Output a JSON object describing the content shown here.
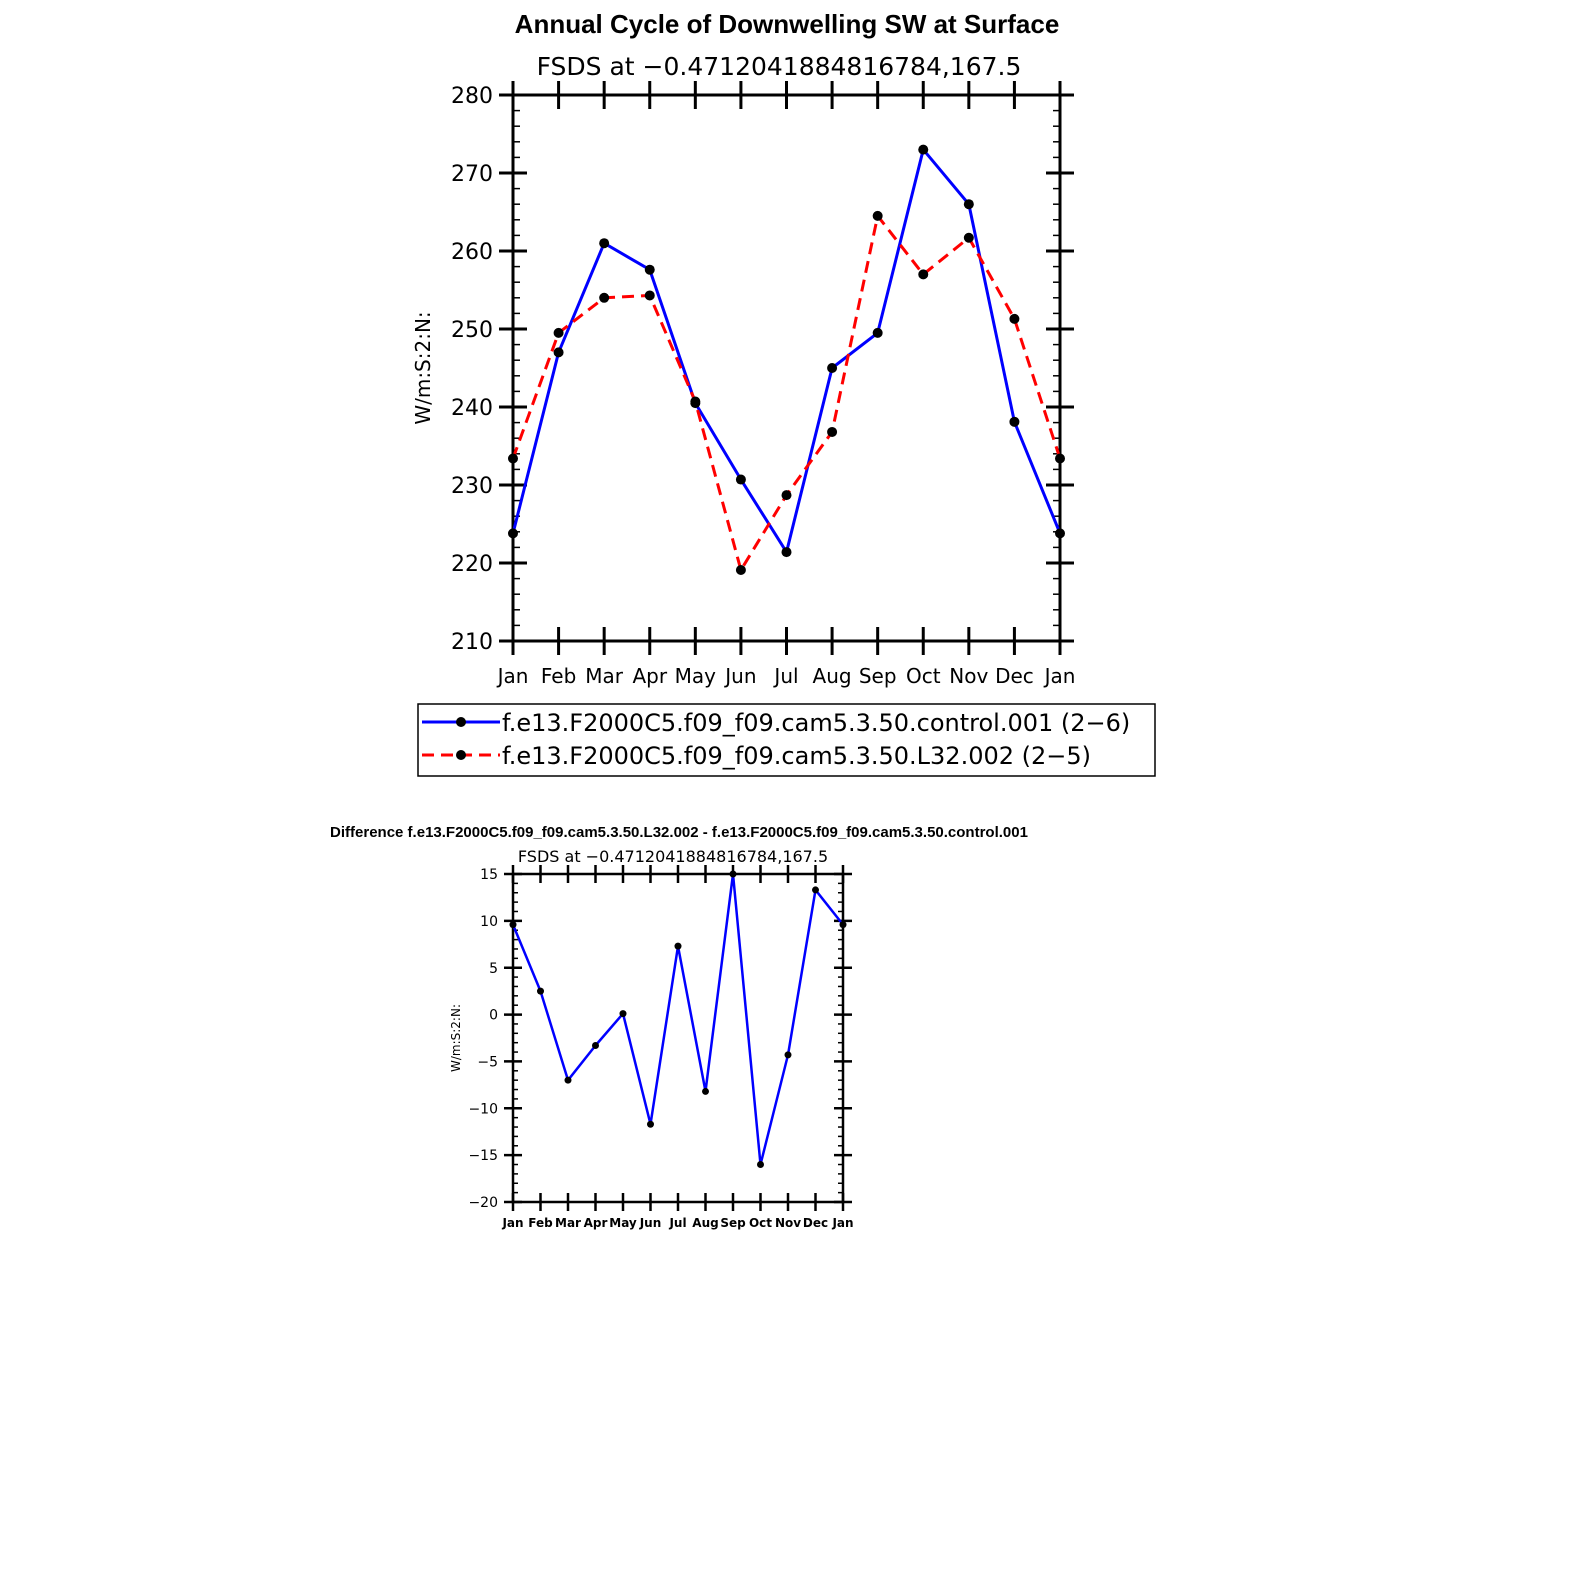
{
  "chart_data": [
    {
      "type": "line",
      "title": "Annual Cycle of Downwelling SW at Surface",
      "subtitle": "FSDS at −0.4712041884816784,167.5",
      "ylabel": "W/m:S:2:N:",
      "xlabel": "",
      "ylim": [
        210,
        280
      ],
      "yticks": [
        210,
        220,
        230,
        240,
        250,
        260,
        270,
        280
      ],
      "categories": [
        "Jan",
        "Feb",
        "Mar",
        "Apr",
        "May",
        "Jun",
        "Jul",
        "Aug",
        "Sep",
        "Oct",
        "Nov",
        "Dec",
        "Jan"
      ],
      "grid": false,
      "legend_position": "bottom",
      "series": [
        {
          "name": "f.e13.F2000C5.f09_f09.cam5.3.50.control.001 (2−6)",
          "color": "#0000ff",
          "dash": "solid",
          "values": [
            223.8,
            247.0,
            261.0,
            257.6,
            240.5,
            230.7,
            221.4,
            245.0,
            249.5,
            273.0,
            266.0,
            238.1,
            223.8
          ]
        },
        {
          "name": "f.e13.F2000C5.f09_f09.cam5.3.50.L32.002 (2−5)",
          "color": "#ff0000",
          "dash": "dashed",
          "values": [
            233.4,
            249.5,
            254.0,
            254.3,
            240.7,
            219.1,
            228.7,
            236.8,
            264.5,
            257.0,
            261.7,
            251.3,
            233.4
          ]
        }
      ]
    },
    {
      "type": "line",
      "title": "Difference f.e13.F2000C5.f09_f09.cam5.3.50.L32.002 - f.e13.F2000C5.f09_f09.cam5.3.50.control.001",
      "subtitle": "FSDS at −0.4712041884816784,167.5",
      "ylabel": "W/m:S:2:N:",
      "xlabel": "",
      "ylim": [
        -20,
        15
      ],
      "yticks": [
        -20,
        -15,
        -10,
        -5,
        0,
        5,
        10,
        15
      ],
      "ytick_labels": [
        "−20",
        "−15",
        "−10",
        "−5",
        "0",
        "5",
        "10",
        "15"
      ],
      "categories": [
        "Jan",
        "Feb",
        "Mar",
        "Apr",
        "May",
        "Jun",
        "Jul",
        "Aug",
        "Sep",
        "Oct",
        "Nov",
        "Dec",
        "Jan"
      ],
      "grid": false,
      "series": [
        {
          "color": "#0000ff",
          "dash": "solid",
          "values": [
            9.6,
            2.5,
            -7.0,
            -3.3,
            0.1,
            -11.7,
            7.3,
            -8.2,
            15.0,
            -16.0,
            -4.3,
            13.3,
            9.6
          ]
        }
      ]
    }
  ]
}
